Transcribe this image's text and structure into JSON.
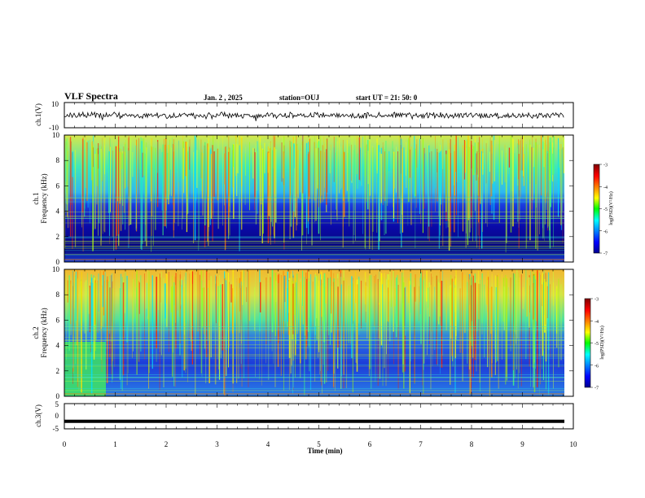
{
  "header": {
    "title": "VLF Spectra",
    "date": "Jan. 2 , 2025",
    "station": "station=OUJ",
    "start": "start UT =  21: 50: 0"
  },
  "colorbar_label": "log(PSD)(V²/Hz)",
  "colors": {
    "jet_low": "#00008f",
    "jet_mid": "#00ff00",
    "jet_high": "#800000"
  },
  "chart_data": [
    {
      "type": "line",
      "panel": "ch1-waveform",
      "ylabel": "ch.1(V)",
      "ylim": [
        -10,
        10
      ],
      "yticks": [
        "10",
        "-10"
      ],
      "xlim": [
        0,
        10
      ],
      "baseline": 0
    },
    {
      "type": "heatmap",
      "panel": "ch1-spectrogram",
      "ylabel": "ch.1 Frequency (kHz)",
      "ylabel_top": "ch.1",
      "ylabel_bottom": "Frequency (kHz)",
      "xlim": [
        0,
        10
      ],
      "ylim": [
        0,
        10
      ],
      "yticks": [
        "0",
        "2",
        "4",
        "6",
        "8",
        "10"
      ],
      "colorbar": {
        "range": [
          -7,
          -3
        ],
        "ticks": [
          "-3",
          "-4",
          "-5",
          "-6",
          "-7"
        ]
      }
    },
    {
      "type": "heatmap",
      "panel": "ch2-spectrogram",
      "ylabel": "ch.2 Frequency (kHz)",
      "ylabel_top": "ch.2",
      "ylabel_bottom": "Frequency (kHz)",
      "xlim": [
        0,
        10
      ],
      "ylim": [
        0,
        10
      ],
      "yticks": [
        "0",
        "2",
        "4",
        "6",
        "8",
        "10"
      ],
      "colorbar": {
        "range": [
          -7,
          -3
        ],
        "ticks": [
          "-3",
          "-4",
          "-5",
          "-6",
          "-7"
        ]
      }
    },
    {
      "type": "line",
      "panel": "ch3-waveform",
      "ylabel": "ch.3(V)",
      "ylim": [
        -5,
        5
      ],
      "yticks": [
        "5",
        "0",
        "-5"
      ],
      "xlim": [
        0,
        10
      ],
      "baseline": -2
    }
  ],
  "xaxis": {
    "label": "Time (min)",
    "ticks": [
      "0",
      "1",
      "2",
      "3",
      "4",
      "5",
      "6",
      "7",
      "8",
      "9",
      "10"
    ]
  }
}
